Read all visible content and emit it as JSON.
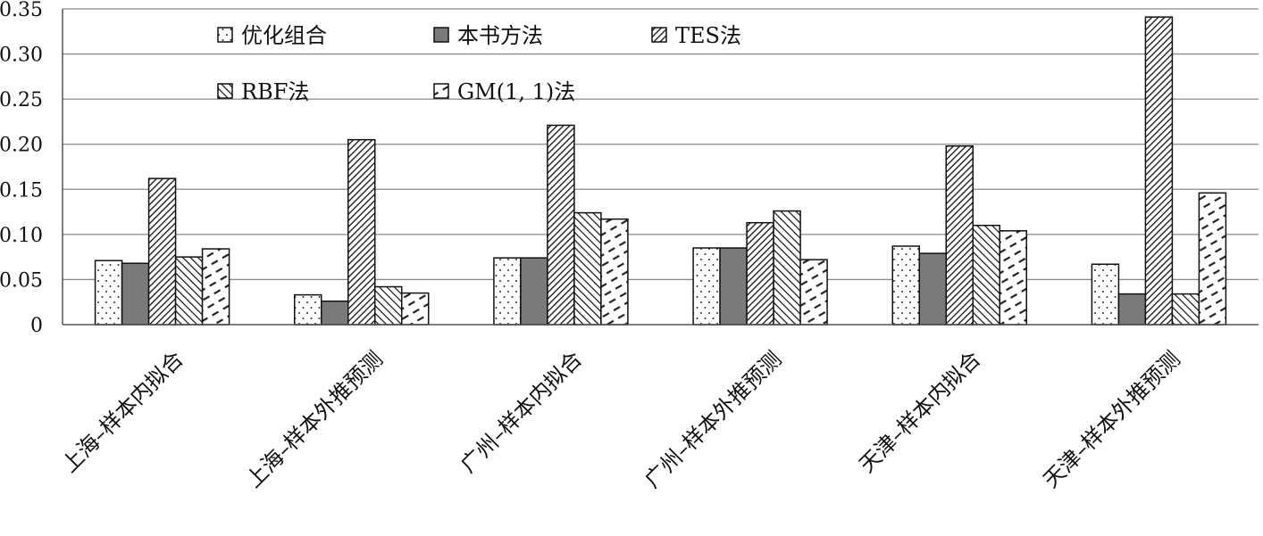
{
  "chart_data": {
    "type": "bar",
    "categories": [
      "上海–样本内拟合",
      "上海–样本外推预测",
      "广州–样本内拟合",
      "广州–样本外推预测",
      "天津–样本内拟合",
      "天津–样本外推预测"
    ],
    "series": [
      {
        "name": "优化组合",
        "pattern": "dots",
        "values": [
          0.071,
          0.033,
          0.074,
          0.085,
          0.087,
          0.067
        ]
      },
      {
        "name": "本书方法",
        "pattern": "solid",
        "values": [
          0.068,
          0.026,
          0.074,
          0.085,
          0.079,
          0.034
        ]
      },
      {
        "name": "TES法",
        "pattern": "dense-diag",
        "values": [
          0.162,
          0.205,
          0.221,
          0.113,
          0.198,
          0.341
        ]
      },
      {
        "name": "RBF法",
        "pattern": "diag",
        "values": [
          0.075,
          0.042,
          0.124,
          0.126,
          0.11,
          0.034
        ]
      },
      {
        "name": "GM(1, 1)法",
        "pattern": "dash-diag",
        "values": [
          0.084,
          0.035,
          0.117,
          0.072,
          0.104,
          0.146
        ]
      }
    ],
    "yticks": [
      "0",
      "0.05",
      "0.10",
      "0.15",
      "0.20",
      "0.25",
      "0.30",
      "0.35"
    ],
    "ylim": [
      0,
      0.35
    ],
    "grid": true,
    "legend_position": "top",
    "colors": {
      "solid": "#7a7a7a",
      "grid": "#8a8a8a",
      "axis": "#555555"
    }
  }
}
